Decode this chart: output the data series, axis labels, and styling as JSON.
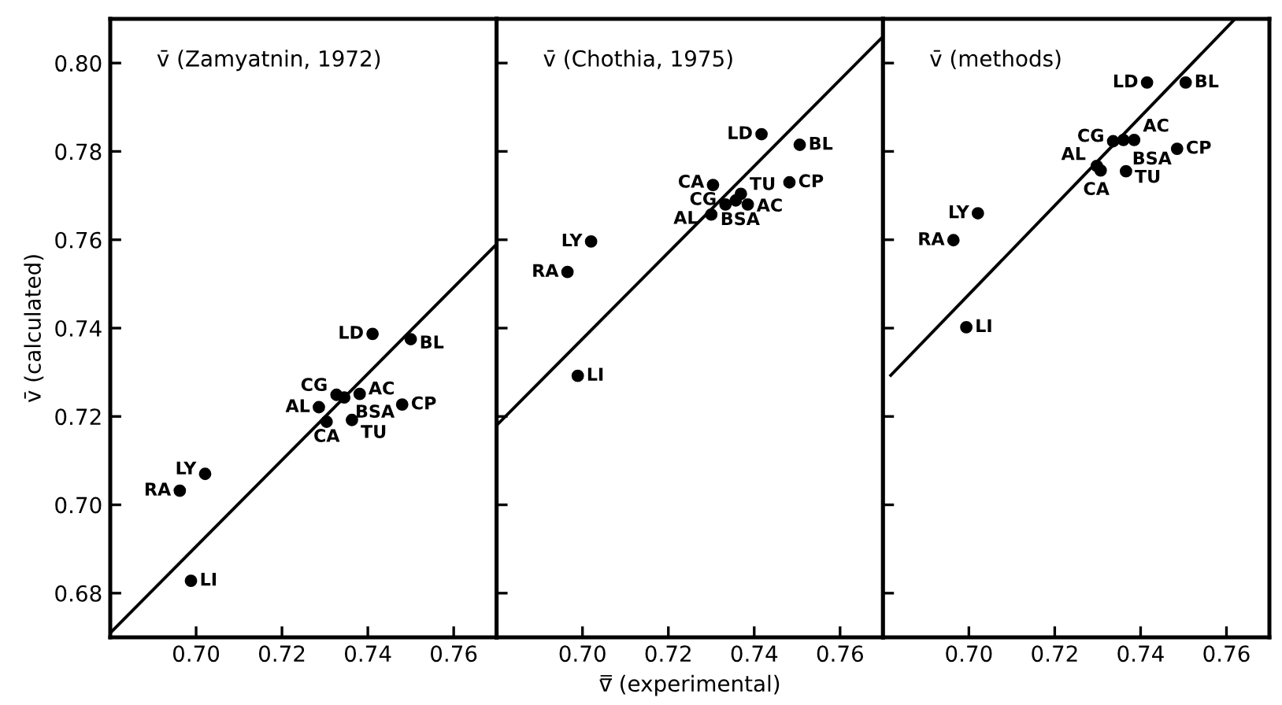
{
  "chart_data": [
    {
      "type": "scatter",
      "title": "v̄ (Zamyatnin, 1972)",
      "ylabel": "v̄ (calculated)",
      "grid": false,
      "legend": false,
      "xlim": [
        0.68,
        0.77
      ],
      "ylim": [
        0.67,
        0.81
      ],
      "xticks": [
        {
          "value": 0.7,
          "label": "0.70"
        },
        {
          "value": 0.72,
          "label": "0.72"
        },
        {
          "value": 0.74,
          "label": "0.74"
        },
        {
          "value": 0.76,
          "label": "0.76"
        }
      ],
      "yticks": [
        {
          "value": 0.68,
          "label": "0.68"
        },
        {
          "value": 0.7,
          "label": "0.70"
        },
        {
          "value": 0.72,
          "label": "0.72"
        },
        {
          "value": 0.74,
          "label": "0.74"
        },
        {
          "value": 0.76,
          "label": "0.76"
        },
        {
          "value": 0.78,
          "label": "0.78"
        },
        {
          "value": 0.8,
          "label": "0.80"
        }
      ],
      "series": [
        {
          "marker": "circle",
          "color": "#000000",
          "x": [
            0.7411,
            0.75,
            0.7327,
            0.7345,
            0.7381,
            0.7286,
            0.748,
            0.7304,
            0.7363,
            0.7021,
            0.6962,
            0.6988
          ],
          "values": [
            0.7387,
            0.7375,
            0.7249,
            0.7243,
            0.7251,
            0.7221,
            0.7227,
            0.7188,
            0.7192,
            0.707,
            0.7032,
            0.6828
          ]
        },
        {
          "type": "line",
          "color": "#000000",
          "x": [
            0.68,
            0.77
          ],
          "values": [
            0.671,
            0.759
          ]
        }
      ],
      "annotations": [
        {
          "text": "LD",
          "x": 0.7411,
          "y": 0.7387
        },
        {
          "text": "BL",
          "x": 0.75,
          "y": 0.7375
        },
        {
          "text": "CG",
          "x": 0.7327,
          "y": 0.7249
        },
        {
          "text": "BSA",
          "x": 0.7345,
          "y": 0.7243
        },
        {
          "text": "AC",
          "x": 0.7381,
          "y": 0.7251
        },
        {
          "text": "AL",
          "x": 0.7286,
          "y": 0.7221
        },
        {
          "text": "CP",
          "x": 0.748,
          "y": 0.7227
        },
        {
          "text": "CA",
          "x": 0.7304,
          "y": 0.7188
        },
        {
          "text": "TU",
          "x": 0.7363,
          "y": 0.7192
        },
        {
          "text": "LY",
          "x": 0.7021,
          "y": 0.707
        },
        {
          "text": "RA",
          "x": 0.6962,
          "y": 0.7032
        },
        {
          "text": "LI",
          "x": 0.6988,
          "y": 0.6828
        }
      ]
    },
    {
      "type": "scatter",
      "title": "v̄ (Chothia, 1975)",
      "xlabel": "v̿ (experimental)",
      "grid": false,
      "legend": false,
      "tick_labels": "x",
      "xlim": [
        0.68,
        0.77
      ],
      "ylim": [
        0.67,
        0.81
      ],
      "xticks": [
        {
          "value": 0.7,
          "label": "0.70"
        },
        {
          "value": 0.72,
          "label": "0.72"
        },
        {
          "value": 0.74,
          "label": "0.74"
        },
        {
          "value": 0.76,
          "label": "0.76"
        }
      ],
      "yticks": [
        {
          "value": 0.68,
          "label": null
        },
        {
          "value": 0.7,
          "label": null
        },
        {
          "value": 0.72,
          "label": null
        },
        {
          "value": 0.74,
          "label": null
        },
        {
          "value": 0.76,
          "label": null
        },
        {
          "value": 0.78,
          "label": null
        },
        {
          "value": 0.8,
          "label": null
        }
      ],
      "series": [
        {
          "marker": "circle",
          "color": "#000000",
          "x": [
            0.7417,
            0.7506,
            0.7304,
            0.7369,
            0.7482,
            0.7333,
            0.7385,
            0.7357,
            0.73,
            0.702,
            0.6965,
            0.6989
          ],
          "values": [
            0.7839,
            0.7815,
            0.7724,
            0.7704,
            0.773,
            0.768,
            0.768,
            0.7689,
            0.7657,
            0.7596,
            0.7527,
            0.7292
          ]
        },
        {
          "type": "line",
          "color": "#000000",
          "x": [
            0.68,
            0.77
          ],
          "values": [
            0.718,
            0.806
          ]
        }
      ],
      "annotations": [
        {
          "text": "LD",
          "x": 0.7417,
          "y": 0.7839
        },
        {
          "text": "BL",
          "x": 0.7506,
          "y": 0.7815
        },
        {
          "text": "CA",
          "x": 0.7304,
          "y": 0.7724
        },
        {
          "text": "TU",
          "x": 0.7369,
          "y": 0.7704
        },
        {
          "text": "CP",
          "x": 0.7482,
          "y": 0.773
        },
        {
          "text": "CG",
          "x": 0.7333,
          "y": 0.768
        },
        {
          "text": "AC",
          "x": 0.7385,
          "y": 0.768
        },
        {
          "text": "BSA",
          "x": 0.7357,
          "y": 0.7689
        },
        {
          "text": "AL",
          "x": 0.73,
          "y": 0.7657
        },
        {
          "text": "LY",
          "x": 0.702,
          "y": 0.7596
        },
        {
          "text": "RA",
          "x": 0.6965,
          "y": 0.7527
        },
        {
          "text": "LI",
          "x": 0.6989,
          "y": 0.7292
        }
      ]
    },
    {
      "type": "scatter",
      "title": "v̄ (methods)",
      "grid": false,
      "legend": false,
      "tick_labels": "x",
      "xlim": [
        0.68,
        0.77
      ],
      "ylim": [
        0.67,
        0.81
      ],
      "xticks": [
        {
          "value": 0.7,
          "label": "0.70"
        },
        {
          "value": 0.72,
          "label": "0.72"
        },
        {
          "value": 0.74,
          "label": "0.74"
        },
        {
          "value": 0.76,
          "label": "0.76"
        }
      ],
      "yticks": [
        {
          "value": 0.68,
          "label": null
        },
        {
          "value": 0.7,
          "label": null
        },
        {
          "value": 0.72,
          "label": null
        },
        {
          "value": 0.74,
          "label": null
        },
        {
          "value": 0.76,
          "label": null
        },
        {
          "value": 0.78,
          "label": null
        },
        {
          "value": 0.8,
          "label": null
        }
      ],
      "series": [
        {
          "marker": "circle",
          "color": "#000000",
          "x": [
            0.7415,
            0.7505,
            0.7385,
            0.7336,
            0.736,
            0.7485,
            0.7298,
            0.7307,
            0.7366,
            0.7021,
            0.6964,
            0.6994
          ],
          "values": [
            0.7956,
            0.7956,
            0.7826,
            0.7823,
            0.7826,
            0.7806,
            0.7767,
            0.7757,
            0.7755,
            0.766,
            0.7599,
            0.7402
          ]
        },
        {
          "type": "line",
          "color": "#000000",
          "x": [
            0.6818,
            0.762
          ],
          "values": [
            0.7293,
            0.81
          ]
        }
      ],
      "annotations": [
        {
          "text": "LD",
          "x": 0.7415,
          "y": 0.7956
        },
        {
          "text": "BL",
          "x": 0.7505,
          "y": 0.7956
        },
        {
          "text": "AC",
          "x": 0.7385,
          "y": 0.7826
        },
        {
          "text": "CG",
          "x": 0.7336,
          "y": 0.7823
        },
        {
          "text": "BSA",
          "x": 0.736,
          "y": 0.7826
        },
        {
          "text": "CP",
          "x": 0.7485,
          "y": 0.7806
        },
        {
          "text": "AL",
          "x": 0.7298,
          "y": 0.7767
        },
        {
          "text": "CA",
          "x": 0.7307,
          "y": 0.7757
        },
        {
          "text": "TU",
          "x": 0.7366,
          "y": 0.7755
        },
        {
          "text": "LY",
          "x": 0.7021,
          "y": 0.766
        },
        {
          "text": "RA",
          "x": 0.6964,
          "y": 0.7599
        },
        {
          "text": "LI",
          "x": 0.6994,
          "y": 0.7402
        }
      ]
    }
  ]
}
